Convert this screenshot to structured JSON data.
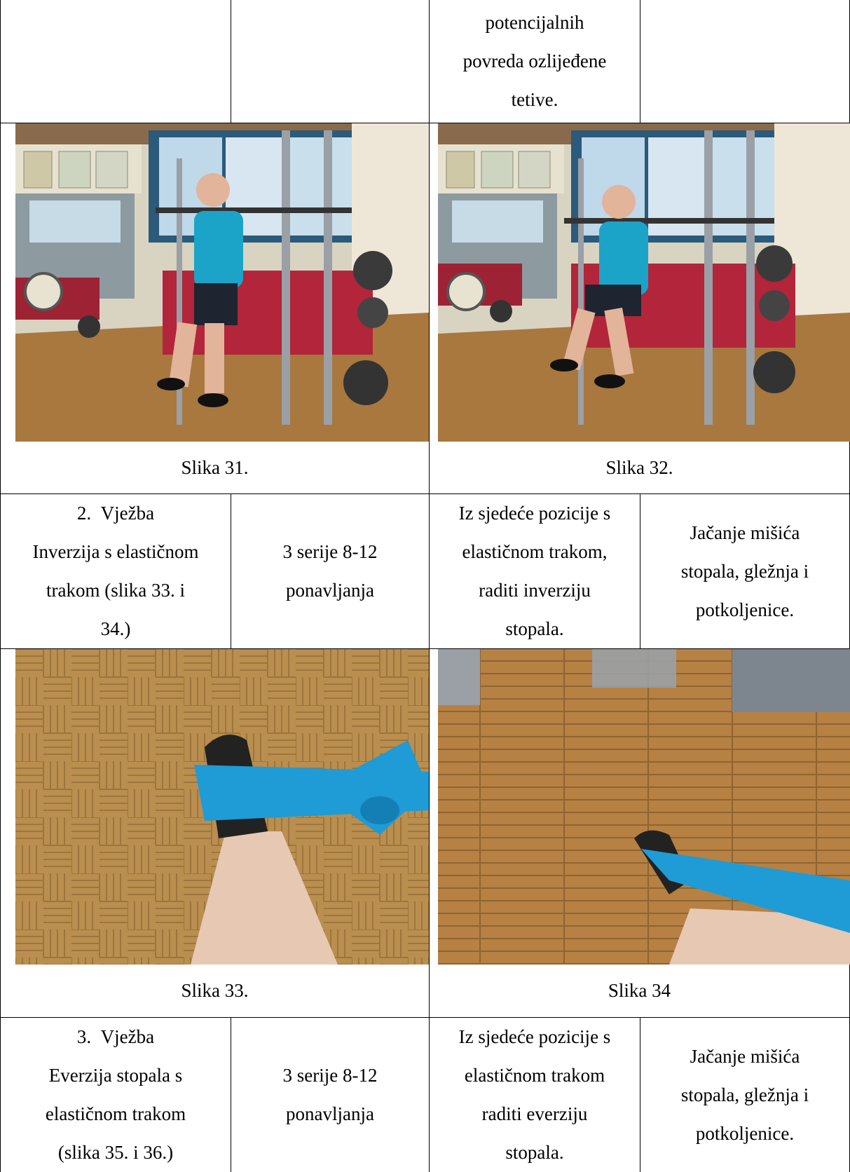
{
  "row_top": {
    "col3_lines": [
      "potencijalnih",
      "povreda ozlijeđene",
      "tetive."
    ]
  },
  "photo_row_1": {
    "left_caption": "Slika 31.",
    "right_caption": "Slika 32."
  },
  "exercise_2": {
    "name_lines": [
      "2.  Vježba",
      "Inverzija s elastičnom",
      "trakom (slika 33. i",
      "34.)"
    ],
    "dosage_lines": [
      "3 serije 8-12",
      "ponavljanja"
    ],
    "description_lines": [
      "Iz sjedeće pozicije s",
      "elastičnom trakom,",
      "raditi inverziju",
      "stopala."
    ],
    "goal_lines": [
      "Jačanje mišića",
      "stopala, gležnja i",
      "potkoljenice."
    ]
  },
  "photo_row_2": {
    "left_caption": "Slika 33.",
    "right_caption": "Slika 34"
  },
  "exercise_3": {
    "name_lines": [
      "3.  Vježba",
      "Everzija stopala s",
      "elastičnom trakom",
      "(slika 35. i 36.)"
    ],
    "dosage_lines": [
      "3 serije 8-12",
      "ponavljanja"
    ],
    "description_lines": [
      "Iz sjedeće pozicije s",
      "elastičnom trakom",
      "raditi everziju",
      "stopala."
    ],
    "goal_lines": [
      "Jačanje mišića",
      "stopala, gležnja i",
      "potkoljenice."
    ]
  },
  "colors": {
    "band": "#1f9bd6",
    "floor": "#a8783f",
    "shirt": "#1ba4c8",
    "rack": "#9aa0a6"
  },
  "images": [
    "squat-standing-photo",
    "squat-sitting-photo",
    "foot-inversion-band-photo",
    "foot-band-floor-photo"
  ]
}
